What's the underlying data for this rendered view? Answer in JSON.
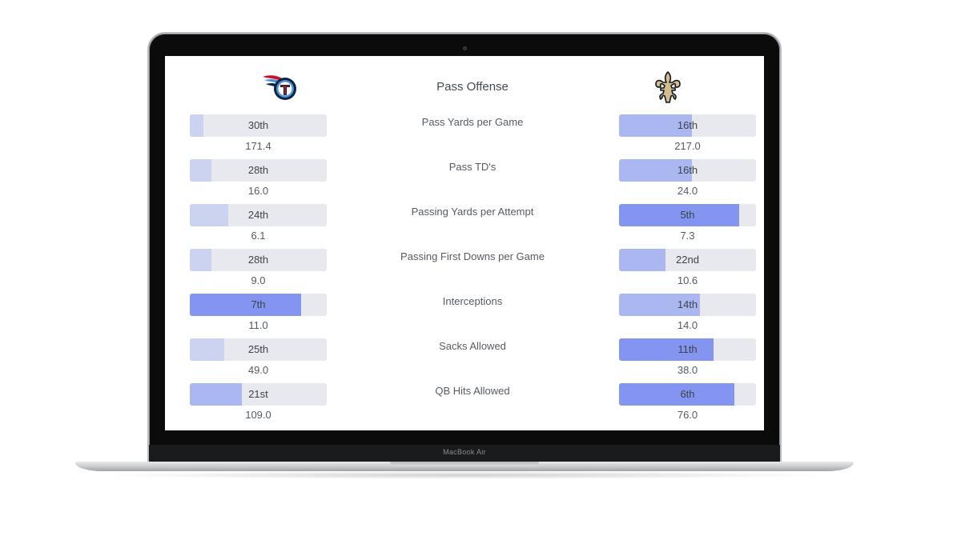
{
  "device": {
    "model_label": "MacBook Air"
  },
  "header": {
    "title": "Pass Offense",
    "left_team_logo": "titans-logo-icon",
    "right_team_logo": "saints-logo-icon"
  },
  "colors": {
    "track": "#e7e9ee",
    "fill_light": "#cbd3f1",
    "fill_mid": "#aab7f1",
    "fill_strong": "#8394f1"
  },
  "stats": [
    {
      "label": "Pass Yards per Game",
      "left": {
        "rank": "30th",
        "value": "171.4",
        "fill": 0.1
      },
      "right": {
        "rank": "16th",
        "value": "217.0",
        "fill": 0.53
      }
    },
    {
      "label": "Pass TD's",
      "left": {
        "rank": "28th",
        "value": "16.0",
        "fill": 0.16
      },
      "right": {
        "rank": "16th",
        "value": "24.0",
        "fill": 0.53
      }
    },
    {
      "label": "Passing Yards per Attempt",
      "left": {
        "rank": "24th",
        "value": "6.1",
        "fill": 0.28
      },
      "right": {
        "rank": "5th",
        "value": "7.3",
        "fill": 0.88
      }
    },
    {
      "label": "Passing First Downs per Game",
      "left": {
        "rank": "28th",
        "value": "9.0",
        "fill": 0.16
      },
      "right": {
        "rank": "22nd",
        "value": "10.6",
        "fill": 0.34
      }
    },
    {
      "label": "Interceptions",
      "left": {
        "rank": "7th",
        "value": "11.0",
        "fill": 0.81
      },
      "right": {
        "rank": "14th",
        "value": "14.0",
        "fill": 0.59
      }
    },
    {
      "label": "Sacks Allowed",
      "left": {
        "rank": "25th",
        "value": "49.0",
        "fill": 0.25
      },
      "right": {
        "rank": "11th",
        "value": "38.0",
        "fill": 0.69
      }
    },
    {
      "label": "QB Hits Allowed",
      "left": {
        "rank": "21st",
        "value": "109.0",
        "fill": 0.38
      },
      "right": {
        "rank": "6th",
        "value": "76.0",
        "fill": 0.84
      }
    }
  ]
}
